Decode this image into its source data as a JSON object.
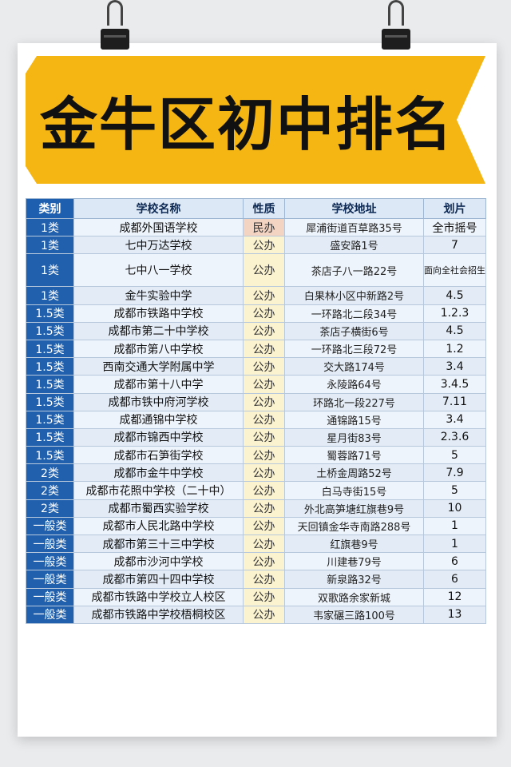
{
  "title": "金牛区初中排名",
  "table": {
    "headers": [
      "类别",
      "学校名称",
      "性质",
      "学校地址",
      "划片"
    ],
    "rows": [
      {
        "cat": "1类",
        "name": "成都外国语学校",
        "type": "民办",
        "addr": "犀浦街道百草路35号",
        "dist": "全市摇号"
      },
      {
        "cat": "1类",
        "name": "七中万达学校",
        "type": "公办",
        "addr": "盛安路1号",
        "dist": "7"
      },
      {
        "cat": "1类",
        "name": "七中八一学校",
        "type": "公办",
        "addr": "茶店子八一路22号",
        "dist": "面向全社会招生"
      },
      {
        "cat": "1类",
        "name": "金牛实验中学",
        "type": "公办",
        "addr": "白果林小区中新路2号",
        "dist": "4.5"
      },
      {
        "cat": "1.5类",
        "name": "成都市铁路中学校",
        "type": "公办",
        "addr": "一环路北二段34号",
        "dist": "1.2.3"
      },
      {
        "cat": "1.5类",
        "name": "成都市第二十中学校",
        "type": "公办",
        "addr": "茶店子横街6号",
        "dist": "4.5"
      },
      {
        "cat": "1.5类",
        "name": "成都市第八中学校",
        "type": "公办",
        "addr": "一环路北三段72号",
        "dist": "1.2"
      },
      {
        "cat": "1.5类",
        "name": "西南交通大学附属中学",
        "type": "公办",
        "addr": "交大路174号",
        "dist": "3.4"
      },
      {
        "cat": "1.5类",
        "name": "成都市第十八中学",
        "type": "公办",
        "addr": "永陵路64号",
        "dist": "3.4.5"
      },
      {
        "cat": "1.5类",
        "name": "成都市铁中府河学校",
        "type": "公办",
        "addr": "环路北一段227号",
        "dist": "7.11"
      },
      {
        "cat": "1.5类",
        "name": "成都通锦中学校",
        "type": "公办",
        "addr": "通锦路15号",
        "dist": "3.4"
      },
      {
        "cat": "1.5类",
        "name": "成都市锦西中学校",
        "type": "公办",
        "addr": "星月街83号",
        "dist": "2.3.6"
      },
      {
        "cat": "1.5类",
        "name": "成都市石笋街学校",
        "type": "公办",
        "addr": "蜀蓉路71号",
        "dist": "5"
      },
      {
        "cat": "2类",
        "name": "成都市金牛中学校",
        "type": "公办",
        "addr": "土桥金周路52号",
        "dist": "7.9"
      },
      {
        "cat": "2类",
        "name": "成都市花照中学校（二十中）",
        "type": "公办",
        "addr": "白马寺街15号",
        "dist": "5"
      },
      {
        "cat": "2类",
        "name": "成都市蜀西实验学校",
        "type": "公办",
        "addr": "外北高笋塘红旗巷9号",
        "dist": "10"
      },
      {
        "cat": "一般类",
        "name": "成都市人民北路中学校",
        "type": "公办",
        "addr": "天回镇金华寺南路288号",
        "dist": "1"
      },
      {
        "cat": "一般类",
        "name": "成都市第三十三中学校",
        "type": "公办",
        "addr": "红旗巷9号",
        "dist": "1"
      },
      {
        "cat": "一般类",
        "name": "成都市沙河中学校",
        "type": "公办",
        "addr": "川建巷79号",
        "dist": "6"
      },
      {
        "cat": "一般类",
        "name": "成都市第四十四中学校",
        "type": "公办",
        "addr": "新泉路32号",
        "dist": "6"
      },
      {
        "cat": "一般类",
        "name": "成都市铁路中学校立人校区",
        "type": "公办",
        "addr": "双歌路余家新城",
        "dist": "12"
      },
      {
        "cat": "一般类",
        "name": "成都市铁路中学校梧桐校区",
        "type": "公办",
        "addr": "韦家碾三路100号",
        "dist": "13"
      }
    ]
  },
  "colors": {
    "banner": "#f5b512",
    "category_cell": "#2160ad",
    "header_bg": "#dce8f5"
  }
}
